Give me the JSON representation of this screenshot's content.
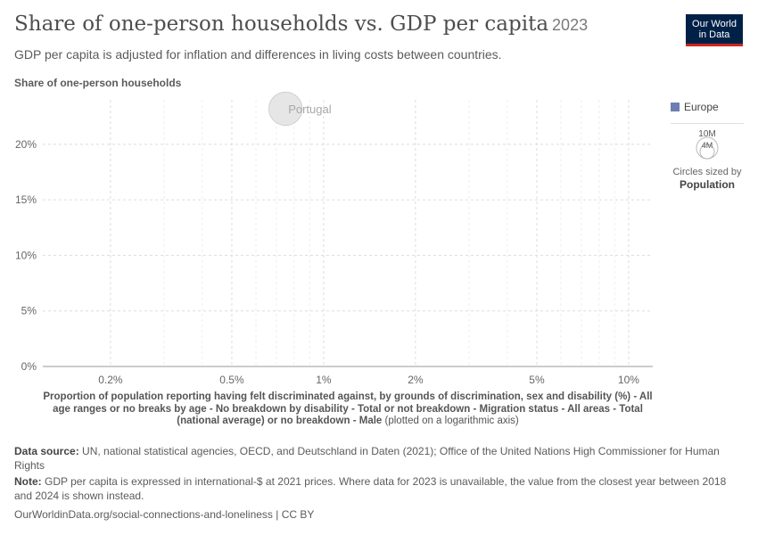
{
  "header": {
    "title": "Share of one-person households vs. GDP per capita",
    "year": "2023",
    "subtitle": "GDP per capita is adjusted for inflation and differences in living costs between countries."
  },
  "logo": {
    "line1": "Our World",
    "line2": "in Data"
  },
  "legend": {
    "color_label": "Europe",
    "color": "#6d7fb2",
    "size_values": [
      "10M",
      "4M"
    ],
    "size_note": "Circles sized by",
    "size_variable": "Population"
  },
  "chart_data": {
    "type": "scatter",
    "ylabel": "Share of one-person households",
    "xlabel": "Proportion of population reporting having felt discriminated against, by grounds of discrimination, sex and disability (%) - All age ranges or no breaks by age - No breakdown by disability - Total or not breakdown - Migration status - All areas - Total (national average) or no breakdown - Male",
    "xlabel_suffix": "(plotted on a logarithmic axis)",
    "x_scale": "log",
    "xlim": [
      0.12,
      12
    ],
    "ylim": [
      0,
      24
    ],
    "x_ticks": [
      {
        "value": 0.2,
        "label": "0.2%"
      },
      {
        "value": 0.5,
        "label": "0.5%"
      },
      {
        "value": 1,
        "label": "1%"
      },
      {
        "value": 2,
        "label": "2%"
      },
      {
        "value": 5,
        "label": "5%"
      },
      {
        "value": 10,
        "label": "10%"
      }
    ],
    "y_ticks": [
      {
        "value": 0,
        "label": "0%"
      },
      {
        "value": 5,
        "label": "5%"
      },
      {
        "value": 10,
        "label": "10%"
      },
      {
        "value": 15,
        "label": "15%"
      },
      {
        "value": 20,
        "label": "20%"
      }
    ],
    "grid": true,
    "points": [
      {
        "label": "Portugal",
        "x": 0.75,
        "y": 23.2,
        "region": "Europe",
        "population_millions": 10.4
      }
    ]
  },
  "footer": {
    "source_label": "Data source:",
    "source_text": "UN, national statistical agencies, OECD, and Deutschland in Daten (2021); Office of the United Nations High Commissioner for Human Rights",
    "note_label": "Note:",
    "note_text": "GDP per capita is expressed in international-$ at 2021 prices. Where data for 2023 is unavailable, the value from the closest year between 2018 and 2024 is shown instead.",
    "url": "OurWorldinData.org/social-connections-and-loneliness | CC BY"
  }
}
